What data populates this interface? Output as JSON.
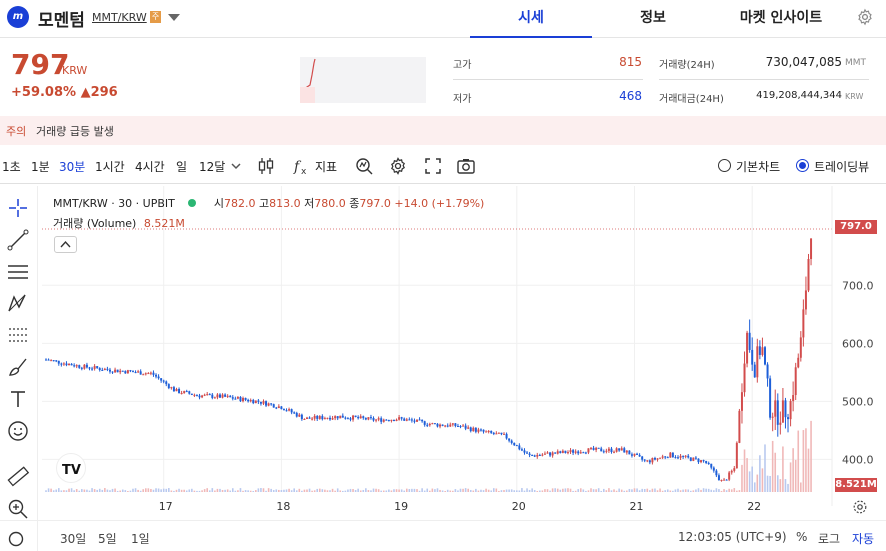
{
  "header": {
    "coin_name": "모멘텀",
    "pair": "MMT/KRW",
    "badge": "주",
    "logo_text": "m",
    "tabs": [
      "시세",
      "정보",
      "마켓 인사이트"
    ],
    "active_tab": "시세"
  },
  "price": {
    "value": "797",
    "unit": "KRW",
    "change_pct": "+59.08%",
    "change_abs": "▲296"
  },
  "stats": {
    "high_label": "고가",
    "high_value": "815",
    "low_label": "저가",
    "low_value": "468",
    "volume_label": "거래량(24H)",
    "volume_value": "730,047,085",
    "volume_unit": "MMT",
    "amount_label": "거래대금(24H)",
    "amount_value": "419,208,444,344",
    "amount_unit": "KRW"
  },
  "caution": {
    "tag": "주의",
    "message": "거래량 급등 발생"
  },
  "toolbar": {
    "intervals": [
      "1초",
      "1분",
      "30분",
      "1시간",
      "4시간",
      "일",
      "12달"
    ],
    "active_interval": "30분",
    "indicator_label": "지표",
    "basic_chart_label": "기본차트",
    "tradingview_label": "트레이딩뷰",
    "selected_view": "트레이딩뷰"
  },
  "chart_legend": {
    "symbol": "MMT/KRW · 30 · UPBIT",
    "open_label": "시",
    "open": "782.0",
    "high_label": "고",
    "high": "813.0",
    "low_label": "저",
    "low": "780.0",
    "close_label": "종",
    "close": "797.0",
    "change": "+14.0 (+1.79%)",
    "volume_label": "거래량 (Volume)",
    "volume_value": "8.521M"
  },
  "chart_data": {
    "type": "candlestick",
    "x_tick_labels": [
      "17",
      "18",
      "19",
      "20",
      "21",
      "22"
    ],
    "y_tick_labels": [
      "700.0",
      "600.0",
      "500.0",
      "400.0"
    ],
    "ylim": [
      320,
      820
    ],
    "last_price_tag": "797.0",
    "last_volume_tag": "8.521M",
    "price_path": [
      [
        16.0,
        572
      ],
      [
        16.3,
        560
      ],
      [
        16.6,
        553
      ],
      [
        16.9,
        548
      ],
      [
        17.1,
        518
      ],
      [
        17.3,
        510
      ],
      [
        17.5,
        508
      ],
      [
        17.8,
        500
      ],
      [
        18.0,
        490
      ],
      [
        18.2,
        470
      ],
      [
        18.5,
        474
      ],
      [
        18.8,
        468
      ],
      [
        19.0,
        470
      ],
      [
        19.3,
        460
      ],
      [
        19.5,
        458
      ],
      [
        19.7,
        448
      ],
      [
        19.9,
        440
      ],
      [
        20.1,
        406
      ],
      [
        20.3,
        410
      ],
      [
        20.6,
        416
      ],
      [
        20.9,
        416
      ],
      [
        21.1,
        396
      ],
      [
        21.3,
        408
      ],
      [
        21.6,
        396
      ],
      [
        21.75,
        360
      ],
      [
        21.85,
        385
      ],
      [
        21.95,
        620
      ],
      [
        22.02,
        560
      ],
      [
        22.08,
        600
      ],
      [
        22.15,
        490
      ],
      [
        22.22,
        478
      ],
      [
        22.32,
        490
      ],
      [
        22.42,
        610
      ],
      [
        22.5,
        800
      ]
    ],
    "grid": true,
    "legend_position": "top-left"
  },
  "bottom_bar": {
    "ranges": [
      "30일",
      "5일",
      "1일"
    ],
    "time": "12:03:05 (UTC+9)",
    "percent_label": "%",
    "log_label": "로그",
    "auto_label": "자동"
  },
  "colors": {
    "up": "#d24c4c",
    "down": "#1e5fd8",
    "accent": "#1a3fd6"
  }
}
